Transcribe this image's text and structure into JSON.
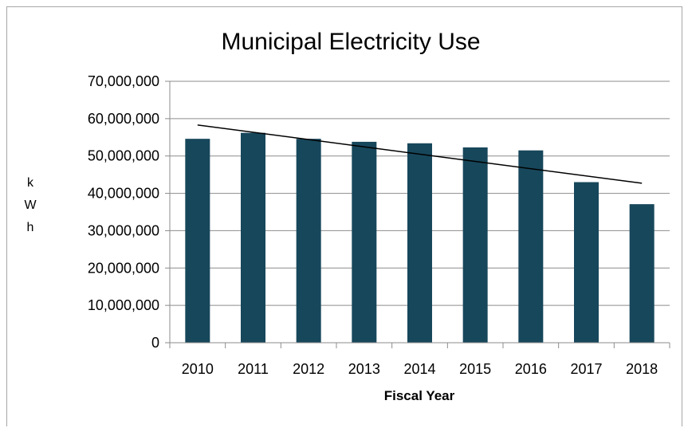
{
  "chart_data": {
    "type": "bar",
    "title": "Municipal Electricity Use",
    "xlabel": "Fiscal Year",
    "ylabel": "kWh",
    "categories": [
      "2010",
      "2011",
      "2012",
      "2013",
      "2014",
      "2015",
      "2016",
      "2017",
      "2018"
    ],
    "series": [
      {
        "values": [
          54600000,
          56200000,
          54600000,
          53800000,
          53400000,
          52300000,
          51500000,
          43000000,
          37100000
        ]
      }
    ],
    "trendline": {
      "type": "linear",
      "start": 58300000,
      "end": 42700000
    },
    "ylim": [
      0,
      70000000
    ],
    "yticks": [
      "0",
      "10,000,000",
      "20,000,000",
      "30,000,000",
      "40,000,000",
      "50,000,000",
      "60,000,000",
      "70,000,000"
    ],
    "ytick_values": [
      0,
      10000000,
      20000000,
      30000000,
      40000000,
      50000000,
      60000000,
      70000000
    ],
    "grid": true,
    "legend": "none",
    "colors": {
      "bar": "#17475b",
      "grid": "#8c8c8c",
      "trend": "#000000"
    }
  }
}
